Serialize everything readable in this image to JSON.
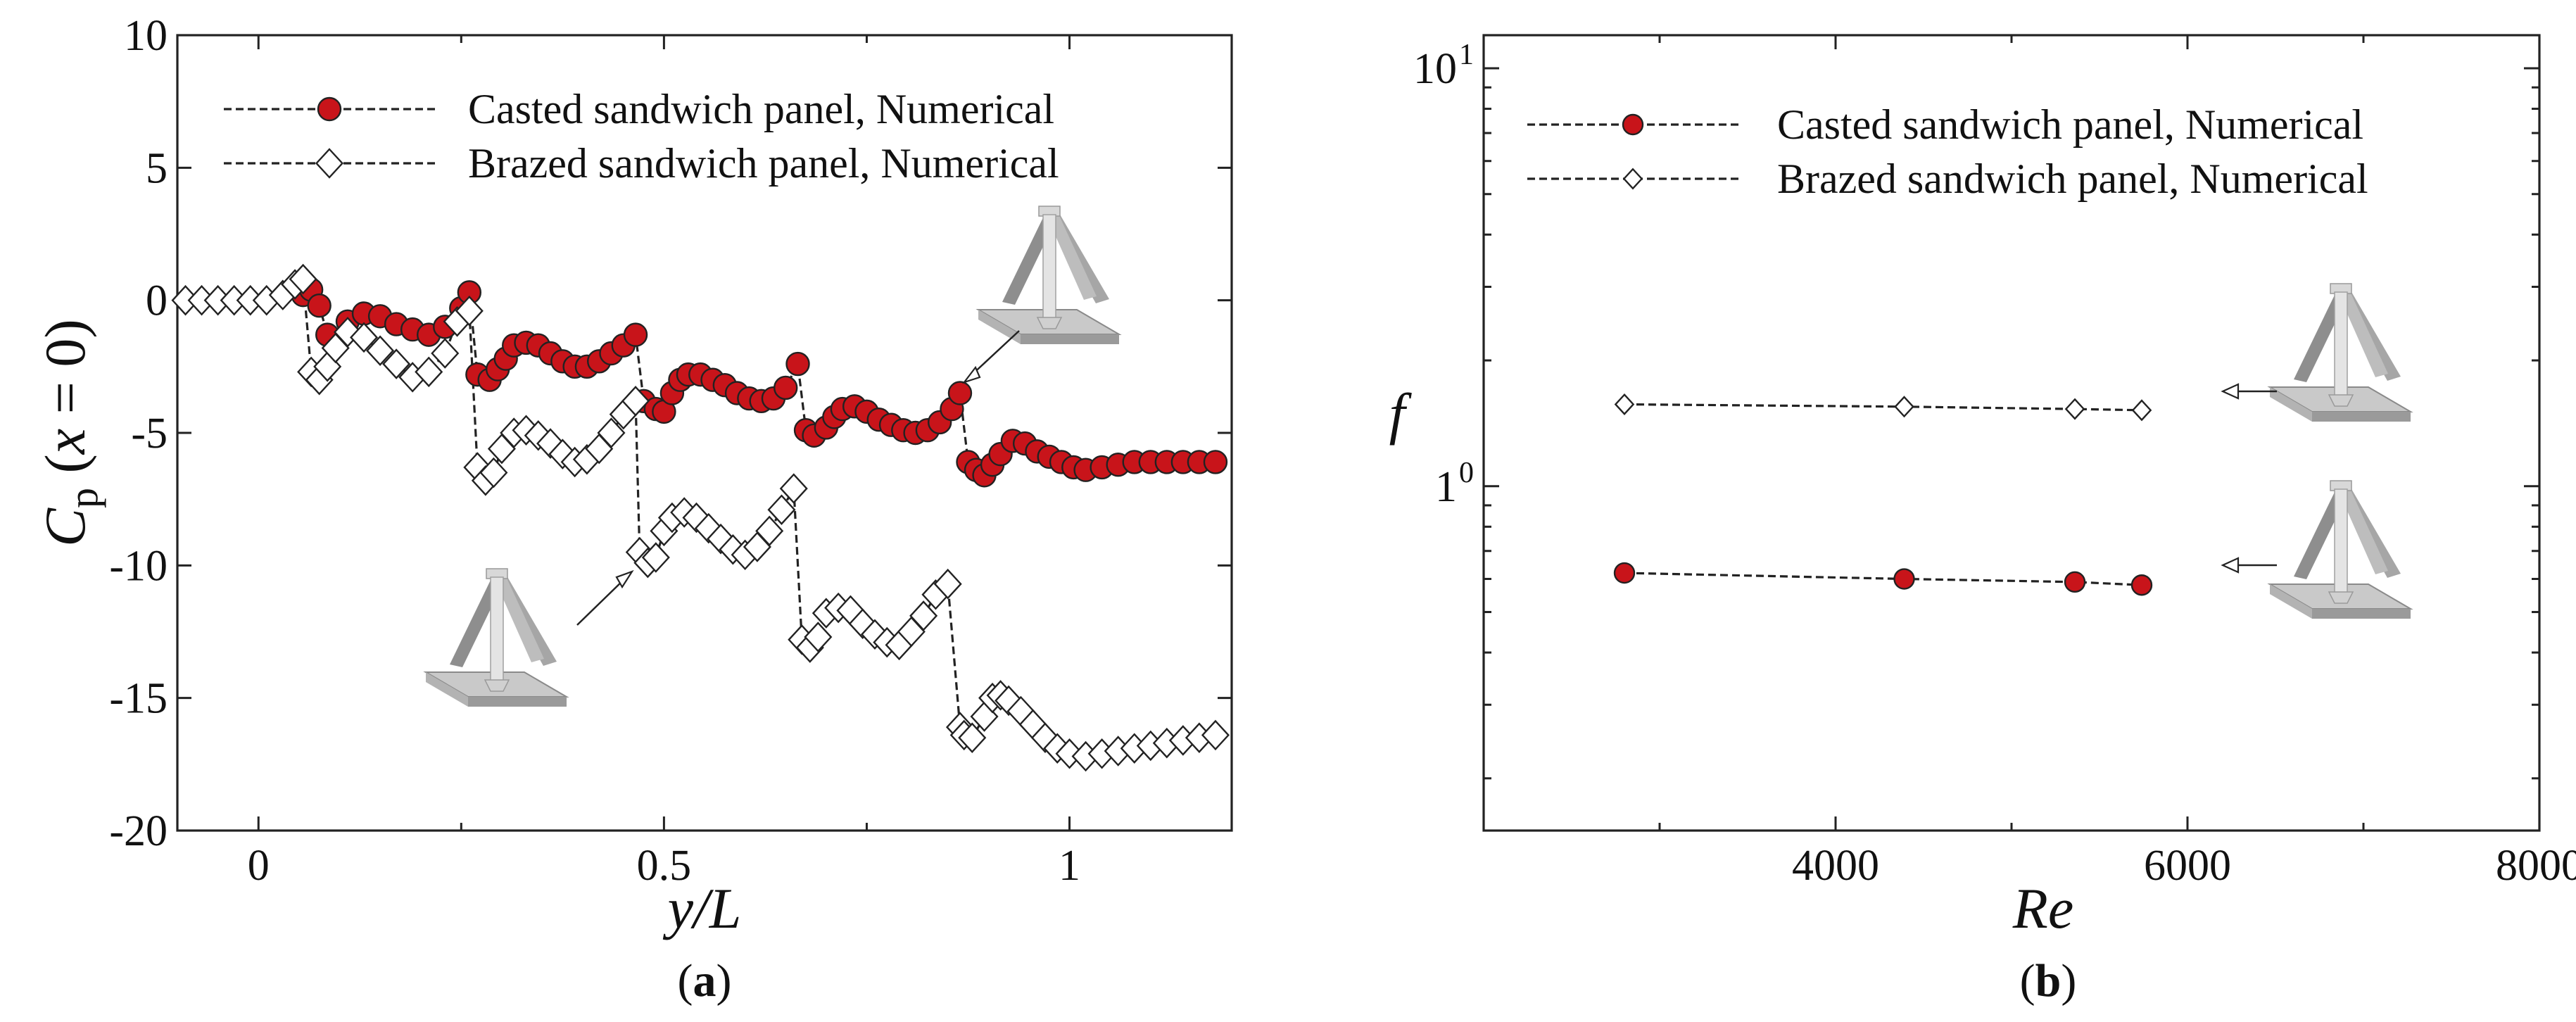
{
  "figure": {
    "panel_a_label": "(a)",
    "panel_b_label": "(b)"
  },
  "chart_data": [
    {
      "type": "line",
      "panel": "a",
      "xlabel": "y/L",
      "ylabel": "C_p (x = 0)",
      "xlim": [
        -0.1,
        1.2
      ],
      "ylim": [
        -20,
        10
      ],
      "xticks": [
        0,
        0.5,
        1
      ],
      "xtick_labels": [
        "0",
        "0.5",
        "1"
      ],
      "yticks": [
        10,
        5,
        0,
        -5,
        -10,
        -15,
        -20
      ],
      "ytick_labels": [
        "10",
        "5",
        "0",
        "-5",
        "-10",
        "-15",
        "-20"
      ],
      "grid": false,
      "legend_position": "top-left",
      "series": [
        {
          "name": "Casted sandwich panel, Numerical",
          "marker": "circle",
          "marker_color": "#c8141a",
          "line_style": "dashed",
          "x": [
            0.055,
            0.065,
            0.075,
            0.085,
            0.11,
            0.13,
            0.15,
            0.17,
            0.19,
            0.21,
            0.23,
            0.25,
            0.26,
            0.27,
            0.285,
            0.295,
            0.305,
            0.315,
            0.33,
            0.345,
            0.36,
            0.375,
            0.39,
            0.405,
            0.42,
            0.435,
            0.45,
            0.465,
            0.475,
            0.49,
            0.5,
            0.51,
            0.52,
            0.53,
            0.545,
            0.56,
            0.575,
            0.59,
            0.605,
            0.62,
            0.635,
            0.65,
            0.665,
            0.675,
            0.685,
            0.7,
            0.71,
            0.72,
            0.735,
            0.75,
            0.765,
            0.78,
            0.795,
            0.81,
            0.825,
            0.84,
            0.855,
            0.865,
            0.875,
            0.885,
            0.895,
            0.905,
            0.915,
            0.93,
            0.945,
            0.96,
            0.975,
            0.99,
            1.005,
            1.02,
            1.04,
            1.06,
            1.08,
            1.1,
            1.12,
            1.14,
            1.16,
            1.18
          ],
          "y": [
            0.2,
            0.4,
            -0.2,
            -1.3,
            -0.8,
            -0.5,
            -0.6,
            -0.9,
            -1.1,
            -1.3,
            -1.0,
            -0.3,
            0.3,
            -2.8,
            -3.0,
            -2.6,
            -2.2,
            -1.7,
            -1.6,
            -1.7,
            -2.0,
            -2.3,
            -2.5,
            -2.5,
            -2.3,
            -2.0,
            -1.7,
            -1.3,
            -3.8,
            -4.1,
            -4.2,
            -3.5,
            -3.0,
            -2.8,
            -2.8,
            -3.0,
            -3.2,
            -3.5,
            -3.7,
            -3.8,
            -3.7,
            -3.3,
            -2.4,
            -4.9,
            -5.1,
            -4.8,
            -4.4,
            -4.1,
            -4.0,
            -4.2,
            -4.5,
            -4.7,
            -4.9,
            -5.0,
            -4.9,
            -4.6,
            -4.1,
            -3.5,
            -6.1,
            -6.4,
            -6.6,
            -6.2,
            -5.8,
            -5.3,
            -5.4,
            -5.7,
            -5.9,
            -6.1,
            -6.3,
            -6.4,
            -6.3,
            -6.2,
            -6.1,
            -6.1,
            -6.1,
            -6.1,
            -6.1,
            -6.1
          ]
        },
        {
          "name": "Brazed sandwich panel, Numerical",
          "marker": "diamond",
          "marker_color": "#ffffff",
          "line_style": "dashed",
          "x": [
            -0.09,
            -0.07,
            -0.05,
            -0.03,
            -0.01,
            0.01,
            0.03,
            0.045,
            0.055,
            0.065,
            0.075,
            0.085,
            0.095,
            0.11,
            0.13,
            0.15,
            0.17,
            0.19,
            0.21,
            0.23,
            0.245,
            0.26,
            0.27,
            0.28,
            0.29,
            0.3,
            0.315,
            0.33,
            0.345,
            0.36,
            0.375,
            0.39,
            0.405,
            0.42,
            0.435,
            0.45,
            0.465,
            0.47,
            0.48,
            0.49,
            0.5,
            0.51,
            0.525,
            0.54,
            0.555,
            0.57,
            0.585,
            0.6,
            0.615,
            0.63,
            0.645,
            0.66,
            0.67,
            0.68,
            0.69,
            0.7,
            0.715,
            0.73,
            0.745,
            0.76,
            0.775,
            0.79,
            0.805,
            0.82,
            0.835,
            0.85,
            0.865,
            0.87,
            0.88,
            0.895,
            0.905,
            0.915,
            0.925,
            0.94,
            0.955,
            0.97,
            0.985,
            1.0,
            1.02,
            1.04,
            1.06,
            1.08,
            1.1,
            1.12,
            1.14,
            1.16,
            1.18
          ],
          "y": [
            0.0,
            0.0,
            0.0,
            0.0,
            0.0,
            0.0,
            0.2,
            0.6,
            0.8,
            -2.7,
            -3.0,
            -2.5,
            -1.8,
            -1.2,
            -1.4,
            -1.9,
            -2.4,
            -2.9,
            -2.7,
            -2.0,
            -0.8,
            -0.4,
            -6.3,
            -6.8,
            -6.5,
            -5.6,
            -5.0,
            -4.9,
            -5.1,
            -5.4,
            -5.8,
            -6.1,
            -6.0,
            -5.6,
            -5.0,
            -4.3,
            -3.8,
            -9.5,
            -9.9,
            -9.7,
            -8.7,
            -8.2,
            -8.0,
            -8.2,
            -8.6,
            -9.0,
            -9.4,
            -9.6,
            -9.3,
            -8.7,
            -7.9,
            -7.1,
            -12.8,
            -13.1,
            -12.7,
            -11.8,
            -11.6,
            -11.7,
            -12.2,
            -12.6,
            -12.9,
            -13.0,
            -12.5,
            -11.9,
            -11.1,
            -10.7,
            -16.1,
            -16.4,
            -16.5,
            -15.7,
            -15.0,
            -14.9,
            -15.1,
            -15.5,
            -16.0,
            -16.5,
            -16.9,
            -17.1,
            -17.2,
            -17.1,
            -17.0,
            -16.9,
            -16.8,
            -16.7,
            -16.6,
            -16.5,
            -16.4
          ]
        }
      ]
    },
    {
      "type": "line",
      "panel": "b",
      "xlabel": "Re",
      "ylabel": "f",
      "xlim": [
        2000,
        8000
      ],
      "ylim": [
        0.15,
        12
      ],
      "yscale": "log",
      "xticks": [
        4000,
        6000,
        8000
      ],
      "xtick_labels": [
        "4000",
        "6000",
        "8000"
      ],
      "yticks": [
        10,
        1
      ],
      "ytick_labels": [
        "10",
        "1"
      ],
      "ytick_exponents": [
        "1",
        "0"
      ],
      "grid": false,
      "legend_position": "top-left",
      "series": [
        {
          "name": "Casted sandwich panel, Numerical",
          "marker": "circle",
          "marker_color": "#c8141a",
          "line_style": "dashed",
          "x": [
            2800,
            4390,
            5360,
            5740
          ],
          "y": [
            0.62,
            0.6,
            0.59,
            0.58
          ]
        },
        {
          "name": "Brazed sandwich panel, Numerical",
          "marker": "diamond",
          "marker_color": "#ffffff",
          "line_style": "dashed",
          "x": [
            2800,
            4390,
            5360,
            5740
          ],
          "y": [
            1.57,
            1.55,
            1.53,
            1.52
          ]
        }
      ]
    }
  ],
  "icons": [
    "pyramid-lattice-core-unit-cell-icon"
  ]
}
